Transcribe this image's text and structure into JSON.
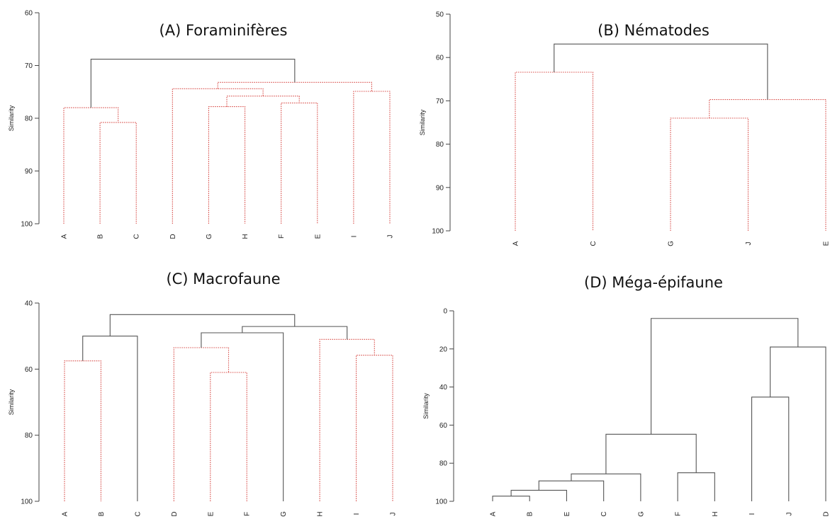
{
  "colors": {
    "solid_link": "#555555",
    "dotted_link": "#d9534f",
    "axis": "#444444"
  },
  "chart_data": [
    {
      "type": "dendrogram",
      "title": "(A) Foraminifères",
      "ylabel": "Similarity",
      "ylim": [
        60,
        100
      ],
      "yticks": [
        60,
        70,
        80,
        90,
        100
      ],
      "leaves": [
        "A",
        "B",
        "C",
        "D",
        "G",
        "H",
        "F",
        "E",
        "I",
        "J"
      ],
      "merges": [
        {
          "left": "leaf:1",
          "right": "leaf:2",
          "height": 80.8,
          "style": "dotted"
        },
        {
          "left": "leaf:0",
          "right": "node:0",
          "height": 78.0,
          "style": "dotted"
        },
        {
          "left": "leaf:4",
          "right": "leaf:5",
          "height": 77.8,
          "style": "dotted"
        },
        {
          "left": "leaf:6",
          "right": "leaf:7",
          "height": 77.1,
          "style": "dotted"
        },
        {
          "left": "node:2",
          "right": "node:3",
          "height": 75.8,
          "style": "dotted"
        },
        {
          "left": "leaf:3",
          "right": "node:4",
          "height": 74.4,
          "style": "dotted"
        },
        {
          "left": "leaf:8",
          "right": "leaf:9",
          "height": 74.9,
          "style": "dotted"
        },
        {
          "left": "node:5",
          "right": "node:6",
          "height": 73.2,
          "style": "dotted"
        },
        {
          "left": "node:1",
          "right": "node:7",
          "height": 68.8,
          "style": "solid"
        }
      ]
    },
    {
      "type": "dendrogram",
      "title": "(B) Nématodes",
      "ylabel": "Similarity",
      "ylim": [
        50,
        100
      ],
      "yticks": [
        50,
        60,
        70,
        80,
        90,
        100
      ],
      "leaves": [
        "A",
        "C",
        "G",
        "J",
        "E"
      ],
      "merges": [
        {
          "left": "leaf:0",
          "right": "leaf:1",
          "height": 63.4,
          "style": "dotted"
        },
        {
          "left": "leaf:2",
          "right": "leaf:3",
          "height": 74.0,
          "style": "dotted"
        },
        {
          "left": "node:1",
          "right": "leaf:4",
          "height": 69.7,
          "style": "dotted"
        },
        {
          "left": "node:0",
          "right": "node:2",
          "height": 56.9,
          "style": "solid"
        }
      ]
    },
    {
      "type": "dendrogram",
      "title": "(C) Macrofaune",
      "ylabel": "Similarity",
      "ylim": [
        40,
        100
      ],
      "yticks": [
        40,
        60,
        80,
        100
      ],
      "leaves": [
        "A",
        "B",
        "C",
        "D",
        "E",
        "F",
        "G",
        "H",
        "I",
        "J"
      ],
      "merges": [
        {
          "left": "leaf:0",
          "right": "leaf:1",
          "height": 57.5,
          "style": "dotted"
        },
        {
          "left": "node:0",
          "right": "leaf:2",
          "height": 50.0,
          "style": "solid"
        },
        {
          "left": "leaf:4",
          "right": "leaf:5",
          "height": 61.0,
          "style": "dotted"
        },
        {
          "left": "leaf:3",
          "right": "node:2",
          "height": 53.5,
          "style": "dotted"
        },
        {
          "left": "node:3",
          "right": "leaf:6",
          "height": 49.0,
          "style": "solid"
        },
        {
          "left": "leaf:8",
          "right": "leaf:9",
          "height": 55.8,
          "style": "dotted"
        },
        {
          "left": "leaf:7",
          "right": "node:5",
          "height": 51.0,
          "style": "dotted"
        },
        {
          "left": "node:4",
          "right": "node:6",
          "height": 47.1,
          "style": "solid"
        },
        {
          "left": "node:1",
          "right": "node:7",
          "height": 43.5,
          "style": "solid"
        }
      ]
    },
    {
      "type": "dendrogram",
      "title": "(D) Méga-épifaune",
      "ylabel": "Similarity",
      "ylim": [
        0,
        100
      ],
      "yticks": [
        0,
        20,
        40,
        60,
        80,
        100
      ],
      "leaves": [
        "A",
        "B",
        "E",
        "C",
        "G",
        "F",
        "H",
        "I",
        "J",
        "D"
      ],
      "merges": [
        {
          "left": "leaf:0",
          "right": "leaf:1",
          "height": 97.3,
          "style": "solid"
        },
        {
          "left": "node:0",
          "right": "leaf:2",
          "height": 94.2,
          "style": "solid"
        },
        {
          "left": "node:1",
          "right": "leaf:3",
          "height": 89.3,
          "style": "solid"
        },
        {
          "left": "node:2",
          "right": "leaf:4",
          "height": 85.6,
          "style": "solid"
        },
        {
          "left": "leaf:5",
          "right": "leaf:6",
          "height": 85.0,
          "style": "solid"
        },
        {
          "left": "node:3",
          "right": "node:4",
          "height": 64.8,
          "style": "solid"
        },
        {
          "left": "leaf:7",
          "right": "leaf:8",
          "height": 45.3,
          "style": "solid"
        },
        {
          "left": "node:6",
          "right": "leaf:9",
          "height": 19.0,
          "style": "solid"
        },
        {
          "left": "node:5",
          "right": "node:7",
          "height": 4.0,
          "style": "solid"
        }
      ]
    }
  ]
}
